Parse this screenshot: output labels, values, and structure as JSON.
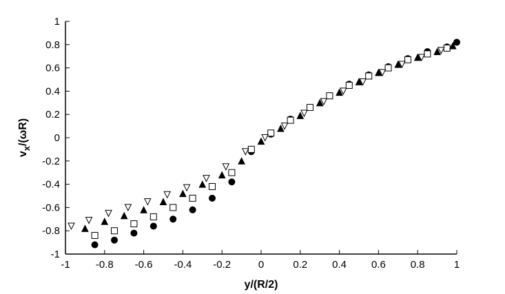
{
  "chart_data": {
    "type": "scatter",
    "xlabel": "y/(R/2)",
    "ylabel": "v",
    "ylabel_subscript": "x",
    "ylabel_rest": "/(ωR)",
    "xlim": [
      -1,
      1
    ],
    "ylim": [
      -1,
      1
    ],
    "xticks": [
      -1,
      -0.8,
      -0.6,
      -0.4,
      -0.2,
      0,
      0.2,
      0.4,
      0.6,
      0.8,
      1
    ],
    "yticks": [
      -1,
      -0.8,
      -0.6,
      -0.4,
      -0.2,
      0,
      0.2,
      0.4,
      0.6,
      0.8,
      1
    ],
    "grid": false,
    "series": [
      {
        "marker": "circle",
        "color": "#000000",
        "filled": true,
        "x": [
          -0.85,
          -0.75,
          -0.65,
          -0.55,
          -0.45,
          -0.35,
          -0.25,
          -0.15,
          -0.05,
          0.05,
          0.15,
          0.25,
          0.35,
          0.45,
          0.55,
          0.65,
          0.75,
          0.85,
          0.95,
          1.0
        ],
        "values": [
          -0.92,
          -0.88,
          -0.82,
          -0.76,
          -0.7,
          -0.62,
          -0.52,
          -0.38,
          -0.12,
          0.03,
          0.16,
          0.26,
          0.36,
          0.46,
          0.54,
          0.61,
          0.68,
          0.74,
          0.78,
          0.82
        ]
      },
      {
        "marker": "square",
        "color": "#000000",
        "filled": false,
        "x": [
          -0.85,
          -0.75,
          -0.65,
          -0.55,
          -0.45,
          -0.35,
          -0.25,
          -0.15,
          -0.05,
          0.05,
          0.15,
          0.25,
          0.35,
          0.45,
          0.55,
          0.65,
          0.75,
          0.85,
          0.95
        ],
        "values": [
          -0.84,
          -0.8,
          -0.74,
          -0.68,
          -0.6,
          -0.52,
          -0.42,
          -0.3,
          -0.1,
          0.04,
          0.15,
          0.26,
          0.36,
          0.45,
          0.53,
          0.6,
          0.67,
          0.72,
          0.77
        ]
      },
      {
        "marker": "triangle",
        "color": "#000000",
        "filled": true,
        "x": [
          -0.9,
          -0.8,
          -0.7,
          -0.6,
          -0.5,
          -0.4,
          -0.3,
          -0.2,
          -0.1,
          0,
          0.1,
          0.2,
          0.3,
          0.4,
          0.5,
          0.6,
          0.7,
          0.8,
          0.9,
          0.98
        ],
        "values": [
          -0.78,
          -0.72,
          -0.67,
          -0.62,
          -0.55,
          -0.48,
          -0.4,
          -0.32,
          -0.2,
          -0.03,
          0.08,
          0.19,
          0.3,
          0.39,
          0.48,
          0.56,
          0.63,
          0.69,
          0.74,
          0.79
        ]
      },
      {
        "marker": "triangle-down",
        "color": "#000000",
        "filled": false,
        "x": [
          -0.97,
          -0.88,
          -0.78,
          -0.68,
          -0.58,
          -0.48,
          -0.38,
          -0.28,
          -0.18,
          -0.08,
          0.02,
          0.12,
          0.22,
          0.32,
          0.42,
          0.52,
          0.62,
          0.72,
          0.82,
          0.92
        ],
        "values": [
          -0.76,
          -0.71,
          -0.65,
          -0.6,
          -0.55,
          -0.49,
          -0.43,
          -0.35,
          -0.25,
          -0.12,
          0.0,
          0.1,
          0.21,
          0.31,
          0.4,
          0.48,
          0.56,
          0.63,
          0.69,
          0.75
        ]
      }
    ]
  }
}
